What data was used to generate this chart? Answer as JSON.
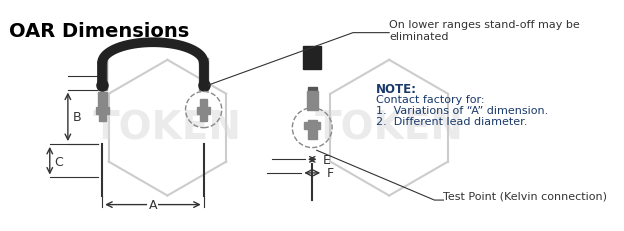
{
  "title": "OAR Dimensions",
  "title_color": "#000000",
  "title_fontsize": 14,
  "bg_color": "#ffffff",
  "note_color": "#1a3a6b",
  "note_title": "NOTE:",
  "note_lines": [
    "Contact factory for:",
    "1.  Variations of “A” dimension.",
    "2.  Different lead diameter."
  ],
  "standoff_text": "On lower ranges stand-off may be\neliminated",
  "test_point_text": "Test Point (Kelvin connection)",
  "dim_labels": {
    "A": "A",
    "B": "B",
    "C": "C",
    "E": "E",
    "F": "F"
  },
  "watermark_text": "TOKEN",
  "watermark_color": "#d0d0d0",
  "line_color": "#333333",
  "resistor_color": "#222222",
  "lead_color": "#888888",
  "dashed_circle_color": "#888888"
}
